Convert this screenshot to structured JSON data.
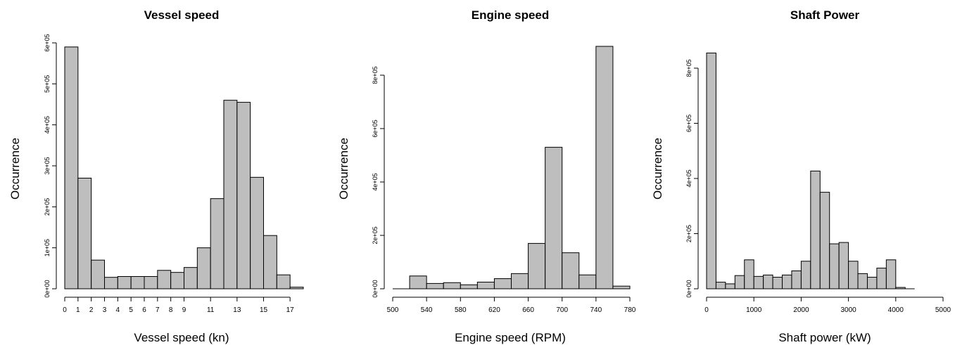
{
  "chart_data": [
    {
      "type": "bar",
      "title": "Vessel speed",
      "xlabel": "Vessel speed (kn)",
      "ylabel": "Occurrence",
      "bin_width": 1,
      "bins_start": [
        0,
        1,
        2,
        3,
        4,
        5,
        6,
        7,
        8,
        9,
        10,
        11,
        12,
        13,
        14,
        15,
        16,
        17
      ],
      "values": [
        590000,
        270000,
        70000,
        28000,
        30000,
        30000,
        30000,
        45000,
        40000,
        52000,
        100000,
        220000,
        460000,
        455000,
        272000,
        130000,
        34000,
        4000
      ],
      "xlim": [
        0,
        18
      ],
      "ylim": [
        0,
        600000
      ],
      "x_ticks": [
        0,
        1,
        2,
        3,
        4,
        5,
        6,
        7,
        8,
        9,
        11,
        13,
        15,
        17
      ],
      "x_tick_labels": [
        "0",
        "1",
        "2",
        "3",
        "4",
        "5",
        "6",
        "7",
        "8",
        "9",
        "11",
        "13",
        "15",
        "17"
      ],
      "y_ticks": [
        0,
        100000,
        200000,
        300000,
        400000,
        500000,
        600000
      ],
      "y_tick_labels": [
        "0e+00",
        "1e+05",
        "2e+05",
        "3e+05",
        "4e+05",
        "5e+05",
        "6e+05"
      ]
    },
    {
      "type": "bar",
      "title": "Engine speed",
      "xlabel": "Engine speed (RPM)",
      "ylabel": "Occurrence",
      "bin_width": 20,
      "bins_start": [
        500,
        520,
        540,
        560,
        580,
        600,
        620,
        640,
        660,
        680,
        700,
        720,
        740,
        760
      ],
      "values": [
        0,
        48000,
        20000,
        23000,
        15000,
        25000,
        38000,
        57000,
        170000,
        530000,
        135000,
        52000,
        908000,
        10000
      ],
      "xlim": [
        500,
        780
      ],
      "ylim": [
        0,
        800000
      ],
      "x_ticks": [
        500,
        540,
        580,
        620,
        660,
        700,
        740,
        780
      ],
      "x_tick_labels": [
        "500",
        "540",
        "580",
        "620",
        "660",
        "700",
        "740",
        "780"
      ],
      "y_ticks": [
        0,
        200000,
        400000,
        600000,
        800000
      ],
      "y_tick_labels": [
        "0e+00",
        "2e+05",
        "4e+05",
        "6e+05",
        "8e+05"
      ]
    },
    {
      "type": "bar",
      "title": "Shaft Power",
      "xlabel": "Shaft power (kW)",
      "ylabel": "Occurrence",
      "bin_width": 200,
      "bins_start": [
        0,
        200,
        400,
        600,
        800,
        1000,
        1200,
        1400,
        1600,
        1800,
        2000,
        2200,
        2400,
        2600,
        2800,
        3000,
        3200,
        3400,
        3600,
        3800,
        4000,
        4200
      ],
      "values": [
        855000,
        24000,
        18000,
        48000,
        105000,
        45000,
        50000,
        42000,
        50000,
        65000,
        100000,
        427000,
        350000,
        163000,
        168000,
        100000,
        55000,
        42000,
        75000,
        105000,
        5000,
        0
      ],
      "xlim": [
        0,
        5000
      ],
      "ylim": [
        0,
        800000
      ],
      "x_ticks": [
        0,
        1000,
        2000,
        3000,
        4000,
        5000
      ],
      "x_tick_labels": [
        "0",
        "1000",
        "2000",
        "3000",
        "4000",
        "5000"
      ],
      "y_ticks": [
        0,
        200000,
        400000,
        600000,
        800000
      ],
      "y_tick_labels": [
        "0e+00",
        "2e+05",
        "4e+05",
        "6e+05",
        "8e+05"
      ]
    }
  ]
}
